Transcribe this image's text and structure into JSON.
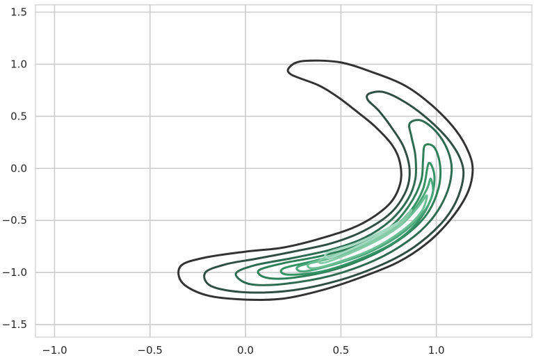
{
  "chart_data": {
    "type": "contour",
    "title": "",
    "xlabel": "",
    "ylabel": "",
    "xlim": [
      -1.1,
      1.5
    ],
    "ylim": [
      -1.62,
      1.57
    ],
    "xticks": [
      "−1.0",
      "−0.5",
      "0.0",
      "0.5",
      "1.0"
    ],
    "xtick_values": [
      -1.0,
      -0.5,
      0.0,
      0.5,
      1.0
    ],
    "yticks": [
      "−1.5",
      "−1.0",
      "−0.5",
      "0.0",
      "0.5",
      "1.0",
      "1.5"
    ],
    "ytick_values": [
      -1.5,
      -1.0,
      -0.5,
      0.0,
      0.5,
      1.0,
      1.5
    ],
    "grid": true,
    "levels": [
      {
        "color": "#333333",
        "points": [
          [
            0.23,
            0.97
          ],
          [
            0.3,
            1.03
          ],
          [
            0.49,
            1.02
          ],
          [
            0.67,
            0.92
          ],
          [
            0.84,
            0.79
          ],
          [
            0.98,
            0.6
          ],
          [
            1.1,
            0.37
          ],
          [
            1.17,
            0.15
          ],
          [
            1.19,
            -0.03
          ],
          [
            1.16,
            -0.25
          ],
          [
            1.07,
            -0.5
          ],
          [
            0.95,
            -0.72
          ],
          [
            0.8,
            -0.9
          ],
          [
            0.6,
            -1.05
          ],
          [
            0.4,
            -1.17
          ],
          [
            0.2,
            -1.25
          ],
          [
            0.0,
            -1.26
          ],
          [
            -0.2,
            -1.22
          ],
          [
            -0.33,
            -1.1
          ],
          [
            -0.34,
            -0.94
          ],
          [
            -0.22,
            -0.86
          ],
          [
            0.0,
            -0.8
          ],
          [
            0.2,
            -0.76
          ],
          [
            0.4,
            -0.67
          ],
          [
            0.6,
            -0.54
          ],
          [
            0.75,
            -0.35
          ],
          [
            0.81,
            -0.15
          ],
          [
            0.81,
            0.05
          ],
          [
            0.77,
            0.22
          ],
          [
            0.68,
            0.4
          ],
          [
            0.58,
            0.55
          ],
          [
            0.48,
            0.69
          ],
          [
            0.38,
            0.8
          ],
          [
            0.24,
            0.9
          ]
        ]
      },
      {
        "color": "#2f4f43",
        "points": [
          [
            0.65,
            0.72
          ],
          [
            0.73,
            0.73
          ],
          [
            0.85,
            0.62
          ],
          [
            0.97,
            0.45
          ],
          [
            1.07,
            0.26
          ],
          [
            1.13,
            0.07
          ],
          [
            1.14,
            -0.1
          ],
          [
            1.1,
            -0.33
          ],
          [
            1.02,
            -0.54
          ],
          [
            0.88,
            -0.76
          ],
          [
            0.72,
            -0.92
          ],
          [
            0.5,
            -1.07
          ],
          [
            0.25,
            -1.17
          ],
          [
            0.0,
            -1.19
          ],
          [
            -0.18,
            -1.13
          ],
          [
            -0.21,
            -1.0
          ],
          [
            -0.1,
            -0.92
          ],
          [
            0.05,
            -0.87
          ],
          [
            0.25,
            -0.8
          ],
          [
            0.45,
            -0.72
          ],
          [
            0.62,
            -0.6
          ],
          [
            0.76,
            -0.43
          ],
          [
            0.84,
            -0.22
          ],
          [
            0.86,
            -0.02
          ],
          [
            0.83,
            0.2
          ],
          [
            0.77,
            0.38
          ],
          [
            0.7,
            0.55
          ],
          [
            0.64,
            0.66
          ]
        ]
      },
      {
        "color": "#2d6b52",
        "points": [
          [
            0.86,
            0.43
          ],
          [
            0.92,
            0.46
          ],
          [
            1.0,
            0.35
          ],
          [
            1.06,
            0.17
          ],
          [
            1.08,
            -0.02
          ],
          [
            1.05,
            -0.26
          ],
          [
            0.97,
            -0.5
          ],
          [
            0.85,
            -0.7
          ],
          [
            0.68,
            -0.88
          ],
          [
            0.45,
            -1.03
          ],
          [
            0.2,
            -1.11
          ],
          [
            0.02,
            -1.11
          ],
          [
            -0.05,
            -1.01
          ],
          [
            0.05,
            -0.93
          ],
          [
            0.25,
            -0.86
          ],
          [
            0.45,
            -0.78
          ],
          [
            0.62,
            -0.67
          ],
          [
            0.76,
            -0.5
          ],
          [
            0.85,
            -0.3
          ],
          [
            0.89,
            -0.1
          ],
          [
            0.89,
            0.12
          ],
          [
            0.87,
            0.3
          ]
        ]
      },
      {
        "color": "#2e8059",
        "points": [
          [
            0.94,
            0.22
          ],
          [
            0.99,
            0.2
          ],
          [
            1.02,
            0.02
          ],
          [
            1.01,
            -0.2
          ],
          [
            0.95,
            -0.44
          ],
          [
            0.84,
            -0.64
          ],
          [
            0.68,
            -0.82
          ],
          [
            0.47,
            -0.97
          ],
          [
            0.25,
            -1.05
          ],
          [
            0.11,
            -1.05
          ],
          [
            0.07,
            -0.98
          ],
          [
            0.2,
            -0.91
          ],
          [
            0.4,
            -0.84
          ],
          [
            0.6,
            -0.73
          ],
          [
            0.76,
            -0.56
          ],
          [
            0.86,
            -0.35
          ],
          [
            0.92,
            -0.12
          ],
          [
            0.93,
            0.08
          ]
        ]
      },
      {
        "color": "#349365",
        "points": [
          [
            0.96,
            0.05
          ],
          [
            0.99,
            -0.08
          ],
          [
            0.97,
            -0.3
          ],
          [
            0.9,
            -0.52
          ],
          [
            0.78,
            -0.71
          ],
          [
            0.6,
            -0.87
          ],
          [
            0.4,
            -0.99
          ],
          [
            0.22,
            -1.02
          ],
          [
            0.2,
            -0.96
          ],
          [
            0.38,
            -0.88
          ],
          [
            0.58,
            -0.77
          ],
          [
            0.74,
            -0.62
          ],
          [
            0.86,
            -0.42
          ],
          [
            0.93,
            -0.2
          ]
        ]
      },
      {
        "color": "#4aa77a",
        "points": [
          [
            0.97,
            -0.1
          ],
          [
            0.98,
            -0.25
          ],
          [
            0.92,
            -0.45
          ],
          [
            0.8,
            -0.65
          ],
          [
            0.63,
            -0.82
          ],
          [
            0.43,
            -0.94
          ],
          [
            0.3,
            -0.99
          ],
          [
            0.28,
            -0.94
          ],
          [
            0.45,
            -0.86
          ],
          [
            0.63,
            -0.74
          ],
          [
            0.78,
            -0.58
          ],
          [
            0.89,
            -0.38
          ],
          [
            0.95,
            -0.2
          ]
        ]
      },
      {
        "color": "#6bbf95",
        "points": [
          [
            0.95,
            -0.26
          ],
          [
            0.92,
            -0.42
          ],
          [
            0.82,
            -0.6
          ],
          [
            0.66,
            -0.78
          ],
          [
            0.47,
            -0.91
          ],
          [
            0.35,
            -0.96
          ],
          [
            0.34,
            -0.91
          ],
          [
            0.5,
            -0.83
          ],
          [
            0.67,
            -0.71
          ],
          [
            0.81,
            -0.55
          ],
          [
            0.9,
            -0.38
          ]
        ]
      },
      {
        "color": "#85cba7",
        "points": [
          [
            0.87,
            -0.4
          ],
          [
            0.8,
            -0.56
          ],
          [
            0.66,
            -0.72
          ],
          [
            0.5,
            -0.85
          ],
          [
            0.4,
            -0.91
          ],
          [
            0.4,
            -0.87
          ],
          [
            0.54,
            -0.79
          ],
          [
            0.69,
            -0.67
          ],
          [
            0.81,
            -0.52
          ]
        ]
      },
      {
        "color": "#a2d9c0",
        "points": [
          [
            0.8,
            -0.52
          ],
          [
            0.7,
            -0.64
          ],
          [
            0.56,
            -0.77
          ],
          [
            0.44,
            -0.86
          ],
          [
            0.43,
            -0.81
          ],
          [
            0.58,
            -0.72
          ],
          [
            0.72,
            -0.6
          ]
        ]
      }
    ]
  }
}
